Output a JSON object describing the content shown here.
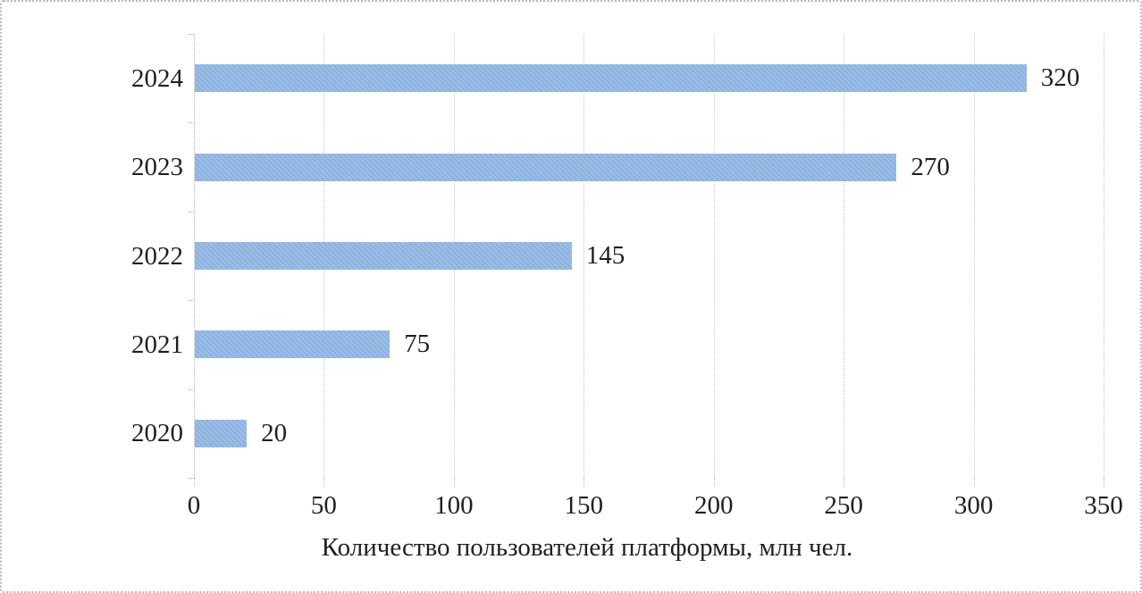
{
  "chart_data": {
    "type": "bar",
    "orientation": "horizontal",
    "title": "",
    "categories": [
      "2024",
      "2023",
      "2022",
      "2021",
      "2020"
    ],
    "values": [
      320,
      270,
      145,
      75,
      20
    ],
    "data_labels": [
      "320",
      "270",
      "145",
      "75",
      "20"
    ],
    "xlabel": "Количество пользователей платформы, млн чел.",
    "ylabel": "",
    "x_ticks": [
      0,
      50,
      100,
      150,
      200,
      250,
      300,
      350
    ],
    "x_tick_labels": [
      "0",
      "50",
      "100",
      "150",
      "200",
      "250",
      "300",
      "350"
    ],
    "xlim": [
      0,
      350
    ],
    "grid": true,
    "legend": "none",
    "bar_color": "#92b7e3",
    "gridline_color": "#c9c9c9",
    "text_color": "#1f1f1f"
  }
}
